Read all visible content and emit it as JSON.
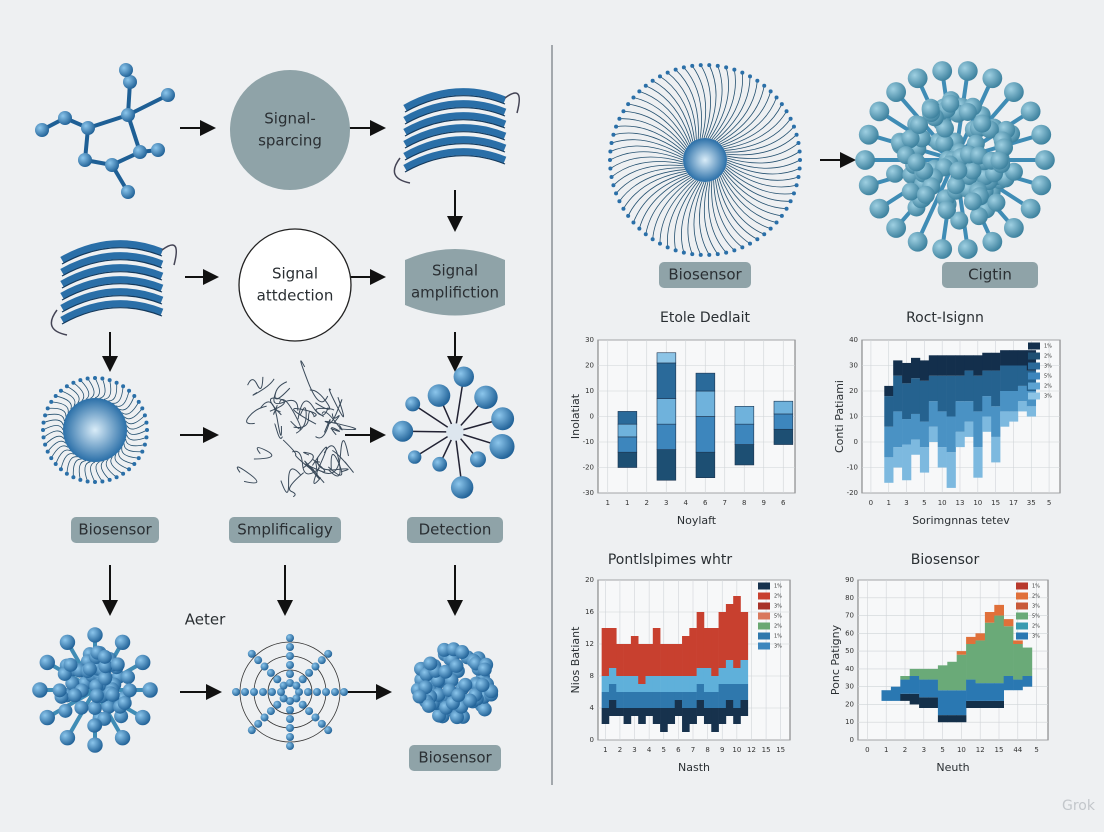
{
  "flow": {
    "nodes": [
      {
        "lines": [
          "Signal-",
          "sparcing"
        ]
      },
      {
        "lines": [
          "Signal",
          "attdection"
        ]
      },
      {
        "lines": [
          "Signal",
          "amplifiction"
        ]
      }
    ],
    "labels": [
      "Biosensor",
      "Smplificaligy",
      "Detection",
      "Aeter",
      "Biosensor"
    ]
  },
  "right": {
    "labels": [
      "Biosensor",
      "Cigtin"
    ]
  },
  "charts": [
    {
      "title": "Etole Dedlait",
      "ylabel": "Inolatiat",
      "xlabel": "Noylaft",
      "ylim": [
        -30,
        30
      ],
      "yticks": [
        -30,
        -20,
        -10,
        0,
        10,
        20,
        30
      ],
      "categories": [
        "1",
        "1",
        "2",
        "3",
        "4",
        "6",
        "7",
        "8",
        "9",
        "6"
      ],
      "colors": [
        "#1d4f73",
        "#3d86bd",
        "#6fb2dc",
        "#2a6a9a",
        "#8cc4e6"
      ],
      "legend": [],
      "bars": [
        {
          "at": 1,
          "base": -20,
          "segments": [
            6,
            6,
            5,
            5
          ]
        },
        {
          "at": 3,
          "base": -25,
          "segments": [
            12,
            10,
            10,
            14,
            4
          ]
        },
        {
          "at": 5,
          "base": -24,
          "segments": [
            10,
            14,
            10,
            7
          ]
        },
        {
          "at": 7,
          "base": -19,
          "segments": [
            8,
            8,
            7
          ]
        },
        {
          "at": 9,
          "base": -11,
          "segments": [
            6,
            6,
            5
          ]
        }
      ]
    },
    {
      "title": "Roct-Isignn",
      "ylabel": "Conti Patiami",
      "xlabel": "Sorimgnnas tetev",
      "ylim": [
        -20,
        40
      ],
      "yticks": [
        -20,
        -10,
        0,
        10,
        20,
        30,
        40
      ],
      "categories": [
        "0",
        "1",
        "3",
        "5",
        "10",
        "13",
        "10",
        "15",
        "17",
        "35",
        "5"
      ],
      "colors": [
        "#7db9df",
        "#4a92c4",
        "#25628f",
        "#132f4c"
      ],
      "legend": [
        "1%",
        "2%",
        "3%",
        "5%",
        "2%",
        "3%"
      ],
      "legend_colors": [
        "#132f4c",
        "#1d4f73",
        "#2a6a9a",
        "#3d86bd",
        "#5da3d2",
        "#8cc4e6"
      ],
      "bars": [
        {
          "at": 1,
          "base": -16,
          "segments": [
            10,
            12,
            12,
            4
          ]
        },
        {
          "at": 1.5,
          "base": -10,
          "segments": [
            8,
            14,
            14,
            6
          ]
        },
        {
          "at": 2,
          "base": -15,
          "segments": [
            14,
            10,
            14,
            8
          ]
        },
        {
          "at": 2.5,
          "base": -5,
          "segments": [
            6,
            10,
            14,
            8
          ]
        },
        {
          "at": 3,
          "base": -12,
          "segments": [
            10,
            10,
            16,
            8
          ]
        },
        {
          "at": 3.5,
          "base": 0,
          "segments": [
            6,
            10,
            10,
            8
          ]
        },
        {
          "at": 4,
          "base": -10,
          "segments": [
            8,
            14,
            14,
            8
          ]
        },
        {
          "at": 4.5,
          "base": -18,
          "segments": [
            14,
            14,
            16,
            8
          ]
        },
        {
          "at": 5,
          "base": -2,
          "segments": [
            6,
            12,
            10,
            8
          ]
        },
        {
          "at": 5.5,
          "base": 2,
          "segments": [
            6,
            8,
            12,
            6
          ]
        },
        {
          "at": 6,
          "base": -14,
          "segments": [
            12,
            14,
            14,
            8
          ]
        },
        {
          "at": 6.5,
          "base": 4,
          "segments": [
            6,
            8,
            10,
            7
          ]
        },
        {
          "at": 7,
          "base": -8,
          "segments": [
            10,
            12,
            14,
            7
          ]
        },
        {
          "at": 7.5,
          "base": 6,
          "segments": [
            6,
            8,
            10,
            6
          ]
        },
        {
          "at": 8,
          "base": 8,
          "segments": [
            4,
            8,
            10,
            6
          ]
        },
        {
          "at": 8.5,
          "base": 12,
          "segments": [
            4,
            6,
            8,
            6
          ]
        },
        {
          "at": 9,
          "base": 10,
          "segments": [
            4,
            6,
            8,
            8
          ]
        }
      ]
    },
    {
      "title": "Pontlslpimes whtr",
      "ylabel": "Nios Batiant",
      "xlabel": "Nasth",
      "ylim": [
        0,
        20
      ],
      "yticks": [
        0,
        4,
        8,
        12,
        16,
        20
      ],
      "categories": [
        "1",
        "2",
        "3",
        "4",
        "5",
        "6",
        "7",
        "8",
        "9",
        "10",
        "12",
        "15",
        "15"
      ],
      "colors": [
        "#17324d",
        "#2f78ad",
        "#5fb0da",
        "#c8402f"
      ],
      "legend": [
        "1%",
        "2%",
        "3%",
        "5%",
        "2%",
        "1%",
        "3%"
      ],
      "legend_colors": [
        "#17324d",
        "#c8402f",
        "#a83228",
        "#d9785c",
        "#6aa872",
        "#2f78ad",
        "#3d86bd"
      ],
      "bars": [
        {
          "at": 0,
          "base": 2,
          "segments": [
            2,
            2,
            2,
            6
          ]
        },
        {
          "at": 0.5,
          "base": 3,
          "segments": [
            2,
            2,
            2,
            5
          ]
        },
        {
          "at": 1,
          "base": 3,
          "segments": [
            1,
            2,
            2,
            4
          ]
        },
        {
          "at": 1.5,
          "base": 2,
          "segments": [
            2,
            2,
            2,
            4
          ]
        },
        {
          "at": 2,
          "base": 3,
          "segments": [
            1,
            2,
            2,
            5
          ]
        },
        {
          "at": 2.5,
          "base": 2,
          "segments": [
            2,
            2,
            1,
            5
          ]
        },
        {
          "at": 3,
          "base": 3,
          "segments": [
            1,
            2,
            2,
            4
          ]
        },
        {
          "at": 3.5,
          "base": 2,
          "segments": [
            2,
            2,
            2,
            6
          ]
        },
        {
          "at": 4,
          "base": 1,
          "segments": [
            3,
            2,
            2,
            4
          ]
        },
        {
          "at": 4.5,
          "base": 2,
          "segments": [
            2,
            2,
            2,
            4
          ]
        },
        {
          "at": 5,
          "base": 3,
          "segments": [
            2,
            1,
            2,
            4
          ]
        },
        {
          "at": 5.5,
          "base": 1,
          "segments": [
            3,
            2,
            2,
            5
          ]
        },
        {
          "at": 6,
          "base": 2,
          "segments": [
            2,
            2,
            2,
            6
          ]
        },
        {
          "at": 6.5,
          "base": 3,
          "segments": [
            2,
            2,
            2,
            7
          ]
        },
        {
          "at": 7,
          "base": 2,
          "segments": [
            2,
            2,
            3,
            5
          ]
        },
        {
          "at": 7.5,
          "base": 1,
          "segments": [
            3,
            2,
            2,
            6
          ]
        },
        {
          "at": 8,
          "base": 2,
          "segments": [
            2,
            3,
            2,
            7
          ]
        },
        {
          "at": 8.5,
          "base": 3,
          "segments": [
            2,
            2,
            3,
            7
          ]
        },
        {
          "at": 9,
          "base": 2,
          "segments": [
            2,
            3,
            2,
            9
          ]
        },
        {
          "at": 9.5,
          "base": 3,
          "segments": [
            2,
            2,
            3,
            6
          ]
        }
      ]
    },
    {
      "title": "Biosensor",
      "ylabel": "Ponc Patigny",
      "xlabel": "Neuth",
      "ylim": [
        0,
        90
      ],
      "yticks": [
        0,
        10,
        20,
        30,
        40,
        50,
        60,
        70,
        80,
        90
      ],
      "categories": [
        "0",
        "1",
        "2",
        "3",
        "5",
        "10",
        "12",
        "15",
        "44",
        "5"
      ],
      "colors": [
        "#14304a",
        "#2a78b2",
        "#6aaa78",
        "#e0703a"
      ],
      "legend": [
        "1%",
        "2%",
        "3%",
        "5%",
        "2%",
        "3%"
      ],
      "legend_colors": [
        "#b8392c",
        "#e0703a",
        "#c85a3a",
        "#6aaa78",
        "#3a9bb0",
        "#2a78b2"
      ],
      "bars": [
        {
          "at": 1,
          "base": 22,
          "segments": [
            0,
            6,
            0,
            0
          ]
        },
        {
          "at": 1.5,
          "base": 22,
          "segments": [
            0,
            8,
            0,
            0
          ]
        },
        {
          "at": 2,
          "base": 22,
          "segments": [
            4,
            8,
            2,
            0
          ]
        },
        {
          "at": 2.5,
          "base": 20,
          "segments": [
            6,
            10,
            4,
            0
          ]
        },
        {
          "at": 3,
          "base": 18,
          "segments": [
            6,
            10,
            6,
            0
          ]
        },
        {
          "at": 3.5,
          "base": 18,
          "segments": [
            6,
            10,
            6,
            0
          ]
        },
        {
          "at": 4,
          "base": 10,
          "segments": [
            4,
            14,
            14,
            0
          ]
        },
        {
          "at": 4.5,
          "base": 10,
          "segments": [
            4,
            14,
            16,
            0
          ]
        },
        {
          "at": 5,
          "base": 10,
          "segments": [
            4,
            14,
            20,
            2
          ]
        },
        {
          "at": 5.5,
          "base": 18,
          "segments": [
            4,
            12,
            20,
            4
          ]
        },
        {
          "at": 6,
          "base": 18,
          "segments": [
            4,
            10,
            24,
            4
          ]
        },
        {
          "at": 6.5,
          "base": 18,
          "segments": [
            4,
            10,
            34,
            6
          ]
        },
        {
          "at": 7,
          "base": 18,
          "segments": [
            4,
            10,
            38,
            6
          ]
        },
        {
          "at": 7.5,
          "base": 28,
          "segments": [
            0,
            8,
            28,
            4
          ]
        },
        {
          "at": 8,
          "base": 28,
          "segments": [
            0,
            6,
            20,
            2
          ]
        },
        {
          "at": 8.5,
          "base": 30,
          "segments": [
            0,
            6,
            16,
            0
          ]
        }
      ]
    }
  ],
  "watermark": "Grok"
}
